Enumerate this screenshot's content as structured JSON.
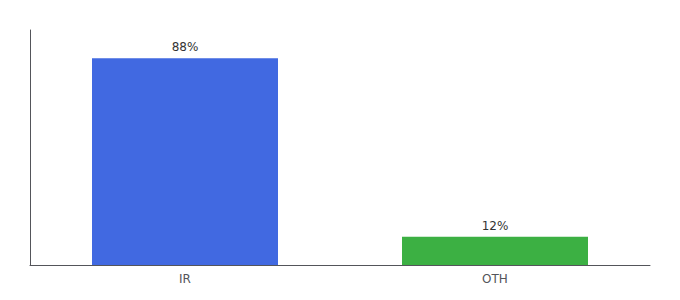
{
  "chart_data": {
    "type": "bar",
    "categories": [
      "IR",
      "OTH"
    ],
    "values": [
      88,
      12
    ],
    "colors": [
      "#4169E1",
      "#3CB043"
    ],
    "data_labels": true,
    "value_labels": [
      "88%",
      "12%"
    ],
    "ylim": [
      0,
      100
    ],
    "yticks": [],
    "tick_labels": "x",
    "grid": false
  }
}
